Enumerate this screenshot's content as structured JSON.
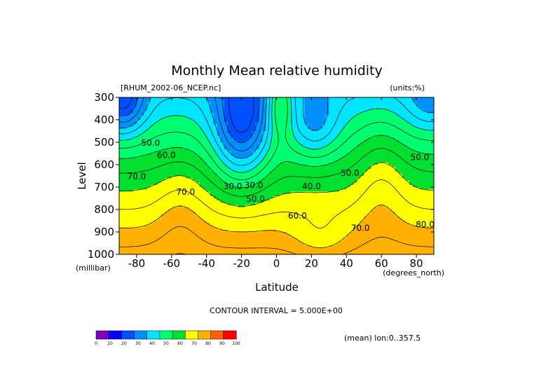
{
  "chart_data": {
    "type": "heatmap",
    "title": "Monthly Mean relative humidity",
    "file_label": "[RHUM_2002-06_NCEP.nc]",
    "units_label": "(units:%)",
    "xlabel": "Latitude",
    "x_units": "(degrees_north)",
    "ylabel": "Level",
    "y_units": "(millibar)",
    "xlim": [
      -90,
      90
    ],
    "ylim": [
      1000,
      300
    ],
    "x_ticks": [
      -80,
      -60,
      -40,
      -20,
      0,
      20,
      40,
      60,
      80
    ],
    "x_tick_labels": [
      "-80",
      "-60",
      "-40",
      "-20",
      "0",
      "20",
      "40",
      "60",
      "80"
    ],
    "y_ticks": [
      1000,
      900,
      800,
      700,
      600,
      500,
      400,
      300
    ],
    "y_tick_labels": [
      "1000",
      "900",
      "800",
      "700",
      "600",
      "500",
      "400",
      "300"
    ],
    "contour_interval_text": "CONTOUR INTERVAL = 5.000E+00",
    "mean_note": "(mean) lon:0..357.5",
    "colorbar": {
      "bounds": [
        0,
        10,
        20,
        30,
        40,
        50,
        60,
        70,
        80,
        90,
        100
      ],
      "labels": [
        "0",
        "10",
        "20",
        "30",
        "40",
        "50",
        "60",
        "70",
        "80",
        "90",
        "100"
      ],
      "colors": [
        "#8000c0",
        "#0000ff",
        "#0050ff",
        "#0090ff",
        "#00e5ff",
        "#00ff70",
        "#00e030",
        "#ffff00",
        "#ffb000",
        "#ff6000",
        "#ff0000"
      ]
    },
    "contour_labels": [
      {
        "text": "50.0",
        "lat": -72,
        "lev": 515
      },
      {
        "text": "60.0",
        "lat": -63,
        "lev": 570
      },
      {
        "text": "70.0",
        "lat": -80,
        "lev": 665
      },
      {
        "text": "70.0",
        "lat": -52,
        "lev": 735
      },
      {
        "text": "30.0",
        "lat": -25,
        "lev": 710
      },
      {
        "text": "30.0",
        "lat": -13,
        "lev": 705
      },
      {
        "text": "50.0",
        "lat": -12,
        "lev": 765
      },
      {
        "text": "40.0",
        "lat": 20,
        "lev": 710
      },
      {
        "text": "50.0",
        "lat": 42,
        "lev": 650
      },
      {
        "text": "60.0",
        "lat": 12,
        "lev": 840
      },
      {
        "text": "70.0",
        "lat": 48,
        "lev": 895
      },
      {
        "text": "80.0",
        "lat": 85,
        "lev": 880
      },
      {
        "text": "50.0",
        "lat": 82,
        "lev": 580
      }
    ],
    "grid": false
  }
}
